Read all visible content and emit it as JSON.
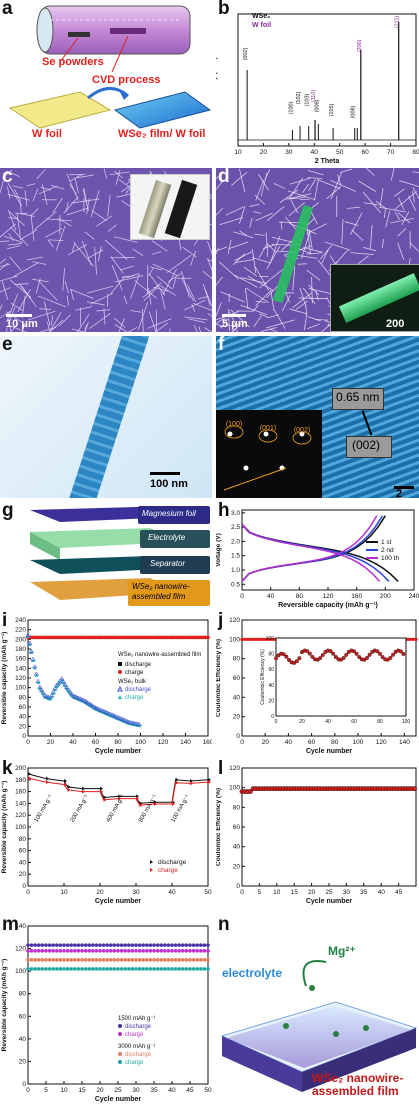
{
  "panels": {
    "a": {
      "label": "a",
      "se_powders": "Se powders",
      "cvd": "CVD process",
      "w_foil": "W foil",
      "film": "WSe₂ film/ W foil"
    },
    "b": {
      "label": "b",
      "legend": [
        "WSe₂",
        "W foil"
      ],
      "xlabel": "2 Theta",
      "ylabel": "Intensity (a. u.)",
      "xticks": [
        "10",
        "20",
        "30",
        "40",
        "50",
        "60",
        "70",
        "80"
      ],
      "peaks": [
        "(002)",
        "(100)",
        "(102)",
        "(103)",
        "(110)",
        "(006)",
        "(105)",
        "(008)",
        "(200)",
        "(211)"
      ]
    },
    "c": {
      "label": "c",
      "scale": "10 μm"
    },
    "d": {
      "label": "d",
      "scale": "5 μm",
      "inset_scale": "200 nm"
    },
    "e": {
      "label": "e",
      "scale": "100 nm"
    },
    "f": {
      "label": "f",
      "d_spacing": "0.65 nm",
      "plane": "(002)",
      "spots": [
        "(100)",
        "(001)",
        "(002)"
      ],
      "scale": "2 nm"
    },
    "g": {
      "label": "g",
      "layers": [
        "Magnesium foil",
        "Electrolyte",
        "Separator",
        "WSe₂ nanowire-assembled film"
      ]
    },
    "h": {
      "label": "h",
      "ylabel": "Voltage (V)",
      "xlabel": "Reversible capacity (mAh g⁻¹)",
      "yticks": [
        "0.5",
        "1.0",
        "1.5",
        "2.0",
        "2.5",
        "3.0"
      ],
      "xticks": [
        "0",
        "40",
        "80",
        "120",
        "160",
        "200",
        "240"
      ],
      "legend": [
        "1 st",
        "2 nd",
        "100 th"
      ]
    },
    "i": {
      "label": "i",
      "ylabel": "Reversible capacity (mAh g⁻¹)",
      "xlabel": "Cycle number",
      "yticks": [
        "0",
        "20",
        "40",
        "60",
        "80",
        "100",
        "120",
        "140",
        "160",
        "180",
        "200",
        "220",
        "240"
      ],
      "xticks": [
        "0",
        "20",
        "40",
        "60",
        "80",
        "100",
        "120",
        "140",
        "160"
      ],
      "legend": [
        "WSe₂ nanowire-assembled film",
        "discharge",
        "charge",
        "WSe₂ bulk",
        "discharge",
        "charge"
      ]
    },
    "j": {
      "label": "j",
      "ylabel": "Coulombic Efficiency (%)",
      "xlabel": "Cycle number",
      "yticks": [
        "0",
        "20",
        "40",
        "60",
        "80",
        "100",
        "120"
      ],
      "xticks": [
        "0",
        "20",
        "40",
        "60",
        "80",
        "100",
        "120",
        "140"
      ],
      "inset_ylabel": "Coulombic Efficiency (%)",
      "inset_xticks": [
        "0",
        "20",
        "40",
        "60",
        "80",
        "100"
      ],
      "inset_yticks": [
        "0",
        "20",
        "40",
        "60",
        "80",
        "100"
      ]
    },
    "k": {
      "label": "k",
      "ylabel": "Reversible capacity (mAh g⁻¹)",
      "xlabel": "Cycle number",
      "yticks": [
        "0",
        "20",
        "40",
        "60",
        "80",
        "100",
        "120",
        "140",
        "160",
        "180",
        "200"
      ],
      "xticks": [
        "0",
        "10",
        "20",
        "30",
        "40",
        "50"
      ],
      "rates": [
        "100 mA g⁻¹",
        "200 mA g⁻¹",
        "400 mA g⁻¹",
        "800 mA g⁻¹",
        "100 mA g⁻¹"
      ],
      "legend": [
        "discharge",
        "charge"
      ]
    },
    "l": {
      "label": "l",
      "ylabel": "Coulombic Efficiency (%)",
      "xlabel": "Cycle number",
      "yticks": [
        "0",
        "20",
        "40",
        "60",
        "80",
        "100",
        "120"
      ],
      "xticks": [
        "0",
        "5",
        "10",
        "15",
        "20",
        "25",
        "30",
        "35",
        "40",
        "45"
      ]
    },
    "m": {
      "label": "m",
      "ylabel": "Reversible capacity (mAh g⁻¹)",
      "xlabel": "Cycle number",
      "yticks": [
        "0",
        "20",
        "40",
        "60",
        "80",
        "100",
        "120",
        "140"
      ],
      "xticks": [
        "0",
        "5",
        "10",
        "15",
        "20",
        "25",
        "30",
        "35",
        "40",
        "45",
        "50"
      ],
      "legend": [
        "1500 mAh g⁻¹",
        "discharge",
        "charge",
        "3000 mAh g⁻¹",
        "discharge",
        "charge"
      ]
    },
    "n": {
      "label": "n",
      "ion": "Mg²⁺",
      "electrolyte": "electrolyte",
      "film": "WSe₂ nanowire-assembled film"
    }
  },
  "colors": {
    "sem_purple": "#7a5fb8",
    "tem_blue": "#2d86c4",
    "discharge_bulk": "#3a4fd0",
    "charge_bulk": "#20b0b0",
    "charge_film": "#e0201e",
    "discharge_film": "#111111",
    "cycle100": "#b52fd0",
    "cycle2": "#2a44d8",
    "cycle1": "#111111"
  },
  "chart_data": [
    {
      "panel": "b",
      "type": "line",
      "xlabel": "2 Theta",
      "ylabel": "Intensity (a. u.)",
      "xlim": [
        10,
        80
      ],
      "series": [
        {
          "name": "WSe₂",
          "peaks_x": [
            13.6,
            31.4,
            34.4,
            37.8,
            41.6,
            47.4,
            55.9,
            56.9
          ]
        },
        {
          "name": "W foil",
          "peaks_x": [
            40.3,
            58.3,
            73.2
          ]
        }
      ]
    },
    {
      "panel": "h",
      "type": "line",
      "xlabel": "Reversible capacity (mAh g⁻¹)",
      "ylabel": "Voltage (V)",
      "xlim": [
        0,
        240
      ],
      "ylim": [
        0.3,
        3.1
      ],
      "series": [
        {
          "name": "1 st",
          "discharge_end": 218,
          "charge_end": 200
        },
        {
          "name": "2 nd",
          "discharge_end": 205,
          "charge_end": 196
        },
        {
          "name": "100 th",
          "discharge_end": 192,
          "charge_end": 188
        }
      ]
    },
    {
      "panel": "i",
      "type": "scatter",
      "xlabel": "Cycle number",
      "ylabel": "Reversible capacity (mAh g⁻¹)",
      "xlim": [
        0,
        160
      ],
      "ylim": [
        0,
        240
      ],
      "series": [
        {
          "name": "film charge",
          "x": [
            0,
            20,
            40,
            60,
            80,
            100,
            120,
            140,
            160
          ],
          "y": [
            205,
            203,
            204,
            203,
            204,
            203,
            204,
            203,
            203
          ]
        },
        {
          "name": "bulk discharge",
          "x": [
            0,
            5,
            10,
            15,
            20,
            25,
            30,
            35,
            40,
            50,
            60,
            70,
            80,
            90,
            100
          ],
          "y": [
            205,
            150,
            100,
            80,
            75,
            100,
            115,
            95,
            80,
            70,
            55,
            45,
            35,
            25,
            20
          ]
        }
      ]
    },
    {
      "panel": "j",
      "type": "scatter",
      "xlabel": "Cycle number",
      "ylabel": "Coulombic Efficiency (%)",
      "xlim": [
        0,
        150
      ],
      "ylim": [
        0,
        120
      ],
      "series": [
        {
          "name": "film",
          "x": [
            0,
            20,
            40,
            60,
            80,
            100,
            120,
            140,
            150
          ],
          "y": [
            99,
            100,
            100,
            100,
            100,
            100,
            100,
            100,
            100
          ]
        }
      ]
    },
    {
      "panel": "k",
      "type": "line",
      "xlabel": "Cycle number",
      "ylabel": "Reversible capacity (mAh g⁻¹)",
      "xlim": [
        0,
        50
      ],
      "ylim": [
        0,
        200
      ],
      "series": [
        {
          "name": "discharge",
          "x": [
            0,
            5,
            10,
            11,
            15,
            20,
            21,
            25,
            30,
            31,
            35,
            40,
            41,
            45,
            50
          ],
          "y": [
            190,
            182,
            178,
            168,
            165,
            165,
            150,
            152,
            152,
            140,
            142,
            142,
            180,
            178,
            180
          ]
        },
        {
          "name": "charge",
          "x": [
            0,
            5,
            10,
            11,
            15,
            20,
            21,
            25,
            30,
            31,
            35,
            40,
            41,
            45,
            50
          ],
          "y": [
            183,
            176,
            172,
            163,
            160,
            160,
            146,
            148,
            148,
            137,
            139,
            139,
            175,
            174,
            176
          ]
        }
      ]
    },
    {
      "panel": "l",
      "type": "scatter",
      "xlabel": "Cycle number",
      "ylabel": "Coulombic Efficiency (%)",
      "xlim": [
        0,
        50
      ],
      "ylim": [
        0,
        120
      ],
      "series": [
        {
          "name": "efficiency",
          "x": [
            0,
            10,
            20,
            30,
            40,
            50
          ],
          "y": [
            96,
            98,
            99,
            99,
            99,
            99
          ]
        }
      ]
    },
    {
      "panel": "m",
      "type": "scatter",
      "xlabel": "Cycle number",
      "ylabel": "Reversible capacity (mAh g⁻¹)",
      "xlim": [
        0,
        50
      ],
      "ylim": [
        0,
        140
      ],
      "series": [
        {
          "name": "1500 discharge",
          "y_const": 123
        },
        {
          "name": "1500 charge",
          "y_const": 118
        },
        {
          "name": "3000 discharge",
          "y_const": 110
        },
        {
          "name": "3000 charge",
          "y_const": 102
        }
      ]
    }
  ]
}
